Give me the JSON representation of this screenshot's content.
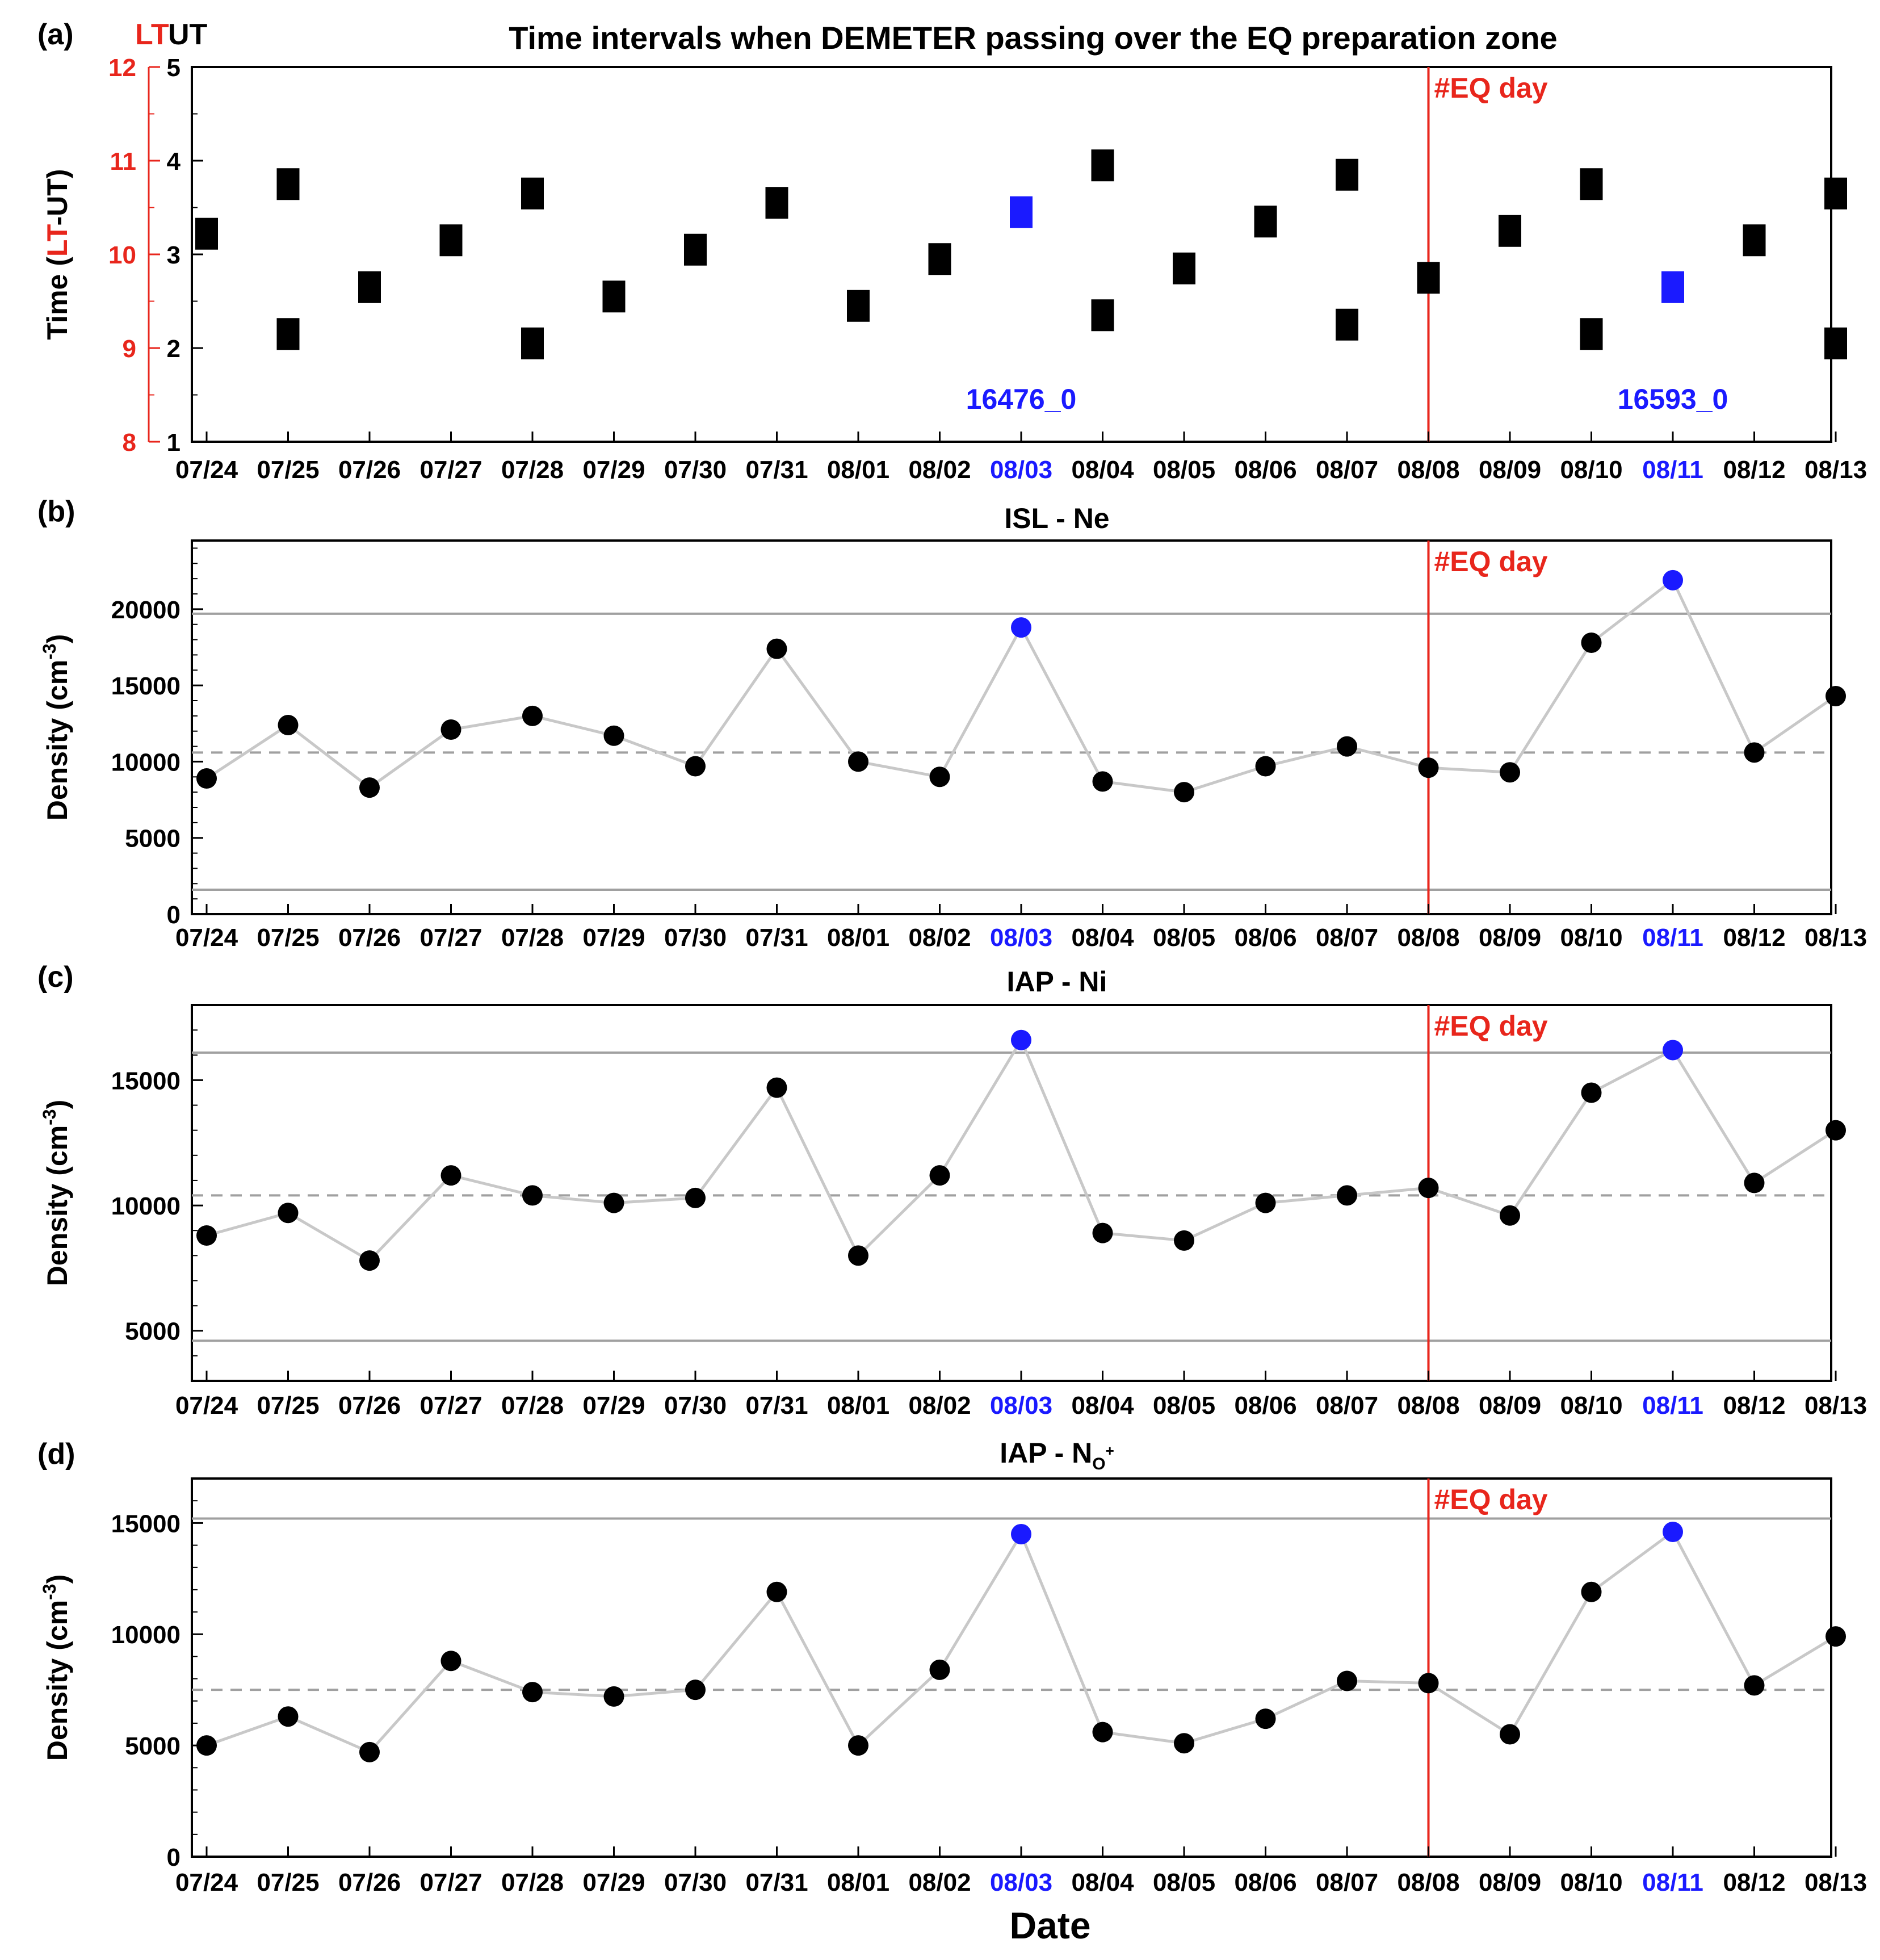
{
  "figure": {
    "xlabel": "Date",
    "eq_label": "#EQ day",
    "eq_date": "08/08",
    "dates": [
      "07/24",
      "07/25",
      "07/26",
      "07/27",
      "07/28",
      "07/29",
      "07/30",
      "07/31",
      "08/01",
      "08/02",
      "08/03",
      "08/04",
      "08/05",
      "08/06",
      "08/07",
      "08/08",
      "08/09",
      "08/10",
      "08/11",
      "08/12",
      "08/13"
    ],
    "highlight_dates": [
      "08/03",
      "08/11"
    ],
    "colors": {
      "data": "#000000",
      "highlight": "#1a1aff",
      "eq": "#e8261c",
      "line": "#c8c8c8",
      "bound": "#a0a0a0",
      "mean": "#a0a0a0"
    }
  },
  "chart_data": [
    {
      "id": "a",
      "panel_label": "(a)",
      "type": "scatter",
      "title": "Time intervals when DEMETER passing over the EQ preparation zone",
      "ylabel_parts": [
        "Time (",
        "LT",
        "-UT)"
      ],
      "lt_header": "LT",
      "ut_header": "UT",
      "ylim_ut": [
        1,
        5
      ],
      "ylim_lt": [
        8,
        12
      ],
      "ut_ticks": [
        "1",
        "2",
        "3",
        "4",
        "5"
      ],
      "lt_ticks": [
        "8",
        "9",
        "10",
        "11",
        "12"
      ],
      "orbit_labels": [
        {
          "text": "16476_0",
          "date": "08/03"
        },
        {
          "text": "16593_0",
          "date": "08/11"
        }
      ],
      "passes": [
        {
          "date": "07/24",
          "ut": 3.22,
          "highlight": false
        },
        {
          "date": "07/25",
          "ut": 3.75,
          "highlight": false
        },
        {
          "date": "07/25",
          "ut": 2.15,
          "highlight": false
        },
        {
          "date": "07/26",
          "ut": 2.65,
          "highlight": false
        },
        {
          "date": "07/27",
          "ut": 3.15,
          "highlight": false
        },
        {
          "date": "07/28",
          "ut": 3.65,
          "highlight": false
        },
        {
          "date": "07/28",
          "ut": 2.05,
          "highlight": false
        },
        {
          "date": "07/29",
          "ut": 2.55,
          "highlight": false
        },
        {
          "date": "07/30",
          "ut": 3.05,
          "highlight": false
        },
        {
          "date": "07/31",
          "ut": 3.55,
          "highlight": false
        },
        {
          "date": "08/01",
          "ut": 2.45,
          "highlight": false
        },
        {
          "date": "08/02",
          "ut": 2.95,
          "highlight": false
        },
        {
          "date": "08/03",
          "ut": 3.45,
          "highlight": true
        },
        {
          "date": "08/04",
          "ut": 3.95,
          "highlight": false
        },
        {
          "date": "08/04",
          "ut": 2.35,
          "highlight": false
        },
        {
          "date": "08/05",
          "ut": 2.85,
          "highlight": false
        },
        {
          "date": "08/06",
          "ut": 3.35,
          "highlight": false
        },
        {
          "date": "08/07",
          "ut": 3.85,
          "highlight": false
        },
        {
          "date": "08/07",
          "ut": 2.25,
          "highlight": false
        },
        {
          "date": "08/08",
          "ut": 2.75,
          "highlight": false
        },
        {
          "date": "08/09",
          "ut": 3.25,
          "highlight": false
        },
        {
          "date": "08/10",
          "ut": 3.75,
          "highlight": false
        },
        {
          "date": "08/10",
          "ut": 2.15,
          "highlight": false
        },
        {
          "date": "08/11",
          "ut": 2.65,
          "highlight": true
        },
        {
          "date": "08/12",
          "ut": 3.15,
          "highlight": false
        },
        {
          "date": "08/13",
          "ut": 3.65,
          "highlight": false
        },
        {
          "date": "08/13",
          "ut": 2.05,
          "highlight": false
        }
      ]
    },
    {
      "id": "b",
      "panel_label": "(b)",
      "type": "line",
      "title": "ISL - Ne",
      "ylabel": "Density (cm",
      "ylabel_exp": "-3",
      "ylabel_close": ")",
      "ylim": [
        0,
        24500
      ],
      "yticks": [
        0,
        5000,
        10000,
        15000,
        20000
      ],
      "ytick_labels": [
        "0",
        "5000",
        "10000",
        "15000",
        "20000"
      ],
      "yminor": 1000,
      "mean": 10600,
      "upper_bound": 19700,
      "lower_bound": 1600,
      "values": [
        8900,
        12400,
        8300,
        12100,
        13000,
        11700,
        9700,
        17400,
        10000,
        9000,
        18800,
        8700,
        8000,
        9700,
        11000,
        9600,
        9300,
        17800,
        21900,
        10600,
        14300
      ]
    },
    {
      "id": "c",
      "panel_label": "(c)",
      "type": "line",
      "title": "IAP - Ni",
      "ylabel": "Density (cm",
      "ylabel_exp": "-3",
      "ylabel_close": ")",
      "ylim": [
        3000,
        18000
      ],
      "yticks": [
        5000,
        10000,
        15000
      ],
      "ytick_labels": [
        "5000",
        "10000",
        "15000"
      ],
      "yminor": 1000,
      "mean": 10400,
      "upper_bound": 16100,
      "lower_bound": 4600,
      "values": [
        8800,
        9700,
        7800,
        11200,
        10400,
        10100,
        10300,
        14700,
        8000,
        11200,
        16600,
        8900,
        8600,
        10100,
        10400,
        10700,
        9600,
        14500,
        16200,
        10900,
        13000
      ]
    },
    {
      "id": "d",
      "panel_label": "(d)",
      "type": "line",
      "title_main": "IAP - N",
      "title_sub": "O",
      "title_sup": "+",
      "ylabel": "Density (cm",
      "ylabel_exp": "-3",
      "ylabel_close": ")",
      "ylim": [
        0,
        17000
      ],
      "yticks": [
        0,
        5000,
        10000,
        15000
      ],
      "ytick_labels": [
        "0",
        "5000",
        "10000",
        "15000"
      ],
      "yminor": 1000,
      "mean": 7500,
      "upper_bound": 15200,
      "values": [
        5000,
        6300,
        4700,
        8800,
        7400,
        7200,
        7500,
        11900,
        5000,
        8400,
        14500,
        5600,
        5100,
        6200,
        7900,
        7800,
        5500,
        11900,
        14600,
        7700,
        9900
      ]
    }
  ]
}
